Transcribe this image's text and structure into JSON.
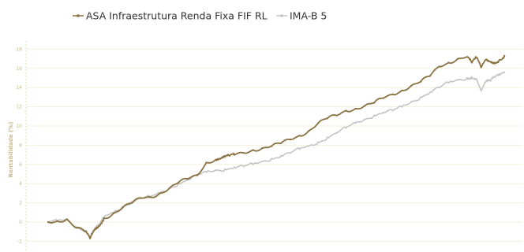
{
  "chart_data": {
    "type": "line",
    "title": "",
    "xlabel": "",
    "ylabel": "Rentabilidade (%)",
    "ylim": [
      -3,
      18
    ],
    "yticks": [
      -2,
      0,
      2,
      4,
      6,
      8,
      10,
      12,
      14,
      16,
      18
    ],
    "xlim": [
      0,
      100
    ],
    "grid": true,
    "legend_position": "top",
    "series": [
      {
        "name": "ASA Infraestrutura Renda Fixa FIF RL",
        "color": "#8a7140",
        "x": [
          0,
          2,
          4,
          6,
          8,
          9,
          10,
          11,
          12,
          14,
          16,
          18,
          20,
          22,
          24,
          26,
          28,
          30,
          32,
          34,
          36,
          37,
          38,
          39,
          40,
          42,
          44,
          46,
          48,
          50,
          52,
          54,
          56,
          58,
          60,
          62,
          64,
          66,
          68,
          70,
          72,
          74,
          76,
          78,
          80,
          82,
          84,
          86,
          88,
          90,
          91,
          92,
          93,
          94,
          95,
          96,
          97,
          98
        ],
        "values": [
          0.0,
          0.1,
          0.3,
          -0.6,
          -1.0,
          -1.7,
          -0.8,
          -0.4,
          0.4,
          0.9,
          1.5,
          2.0,
          2.5,
          2.6,
          3.0,
          3.5,
          4.1,
          4.5,
          4.9,
          6.2,
          6.5,
          6.6,
          6.8,
          6.9,
          7.0,
          7.2,
          7.5,
          7.7,
          7.9,
          8.2,
          8.6,
          9.0,
          9.5,
          10.3,
          10.8,
          11.1,
          11.6,
          11.8,
          12.1,
          12.4,
          12.9,
          13.3,
          13.7,
          14.2,
          14.6,
          15.2,
          16.2,
          16.6,
          17.0,
          17.2,
          16.6,
          17.1,
          16.1,
          16.9,
          16.7,
          16.6,
          16.9,
          17.3
        ]
      },
      {
        "name": "IMA-B 5",
        "color": "#c4c4c4",
        "x": [
          0,
          2,
          4,
          6,
          8,
          9,
          10,
          11,
          12,
          14,
          16,
          18,
          20,
          22,
          24,
          26,
          28,
          30,
          32,
          34,
          36,
          38,
          40,
          42,
          44,
          46,
          48,
          50,
          52,
          54,
          56,
          58,
          60,
          62,
          64,
          66,
          68,
          70,
          72,
          74,
          76,
          78,
          80,
          82,
          84,
          86,
          88,
          90,
          91,
          92,
          93,
          94,
          95,
          96,
          97,
          98
        ],
        "values": [
          0.0,
          0.1,
          0.3,
          -0.5,
          -0.9,
          -1.5,
          -0.7,
          -0.3,
          0.5,
          1.0,
          1.6,
          2.1,
          2.5,
          2.6,
          3.0,
          3.5,
          4.0,
          4.4,
          4.8,
          5.2,
          5.4,
          5.5,
          5.7,
          5.8,
          6.0,
          6.3,
          6.6,
          6.9,
          7.2,
          7.6,
          7.9,
          8.3,
          8.8,
          9.3,
          9.8,
          10.3,
          10.7,
          11.1,
          11.4,
          11.6,
          12.0,
          12.5,
          13.0,
          13.5,
          14.0,
          14.5,
          14.8,
          15.0,
          15.1,
          14.9,
          13.7,
          14.6,
          14.7,
          15.1,
          15.3,
          15.6
        ]
      }
    ]
  },
  "legend": {
    "series1_label": "ASA Infraestrutura Renda Fixa FIF RL",
    "series2_label": "IMA-B 5",
    "series1_color": "#8a7140",
    "series2_color": "#c4c4c4"
  },
  "axis": {
    "y_title": "Rentabilidade (%)"
  },
  "colors": {
    "grid": "#f6f0dc",
    "tick_label": "#c8b98a"
  }
}
